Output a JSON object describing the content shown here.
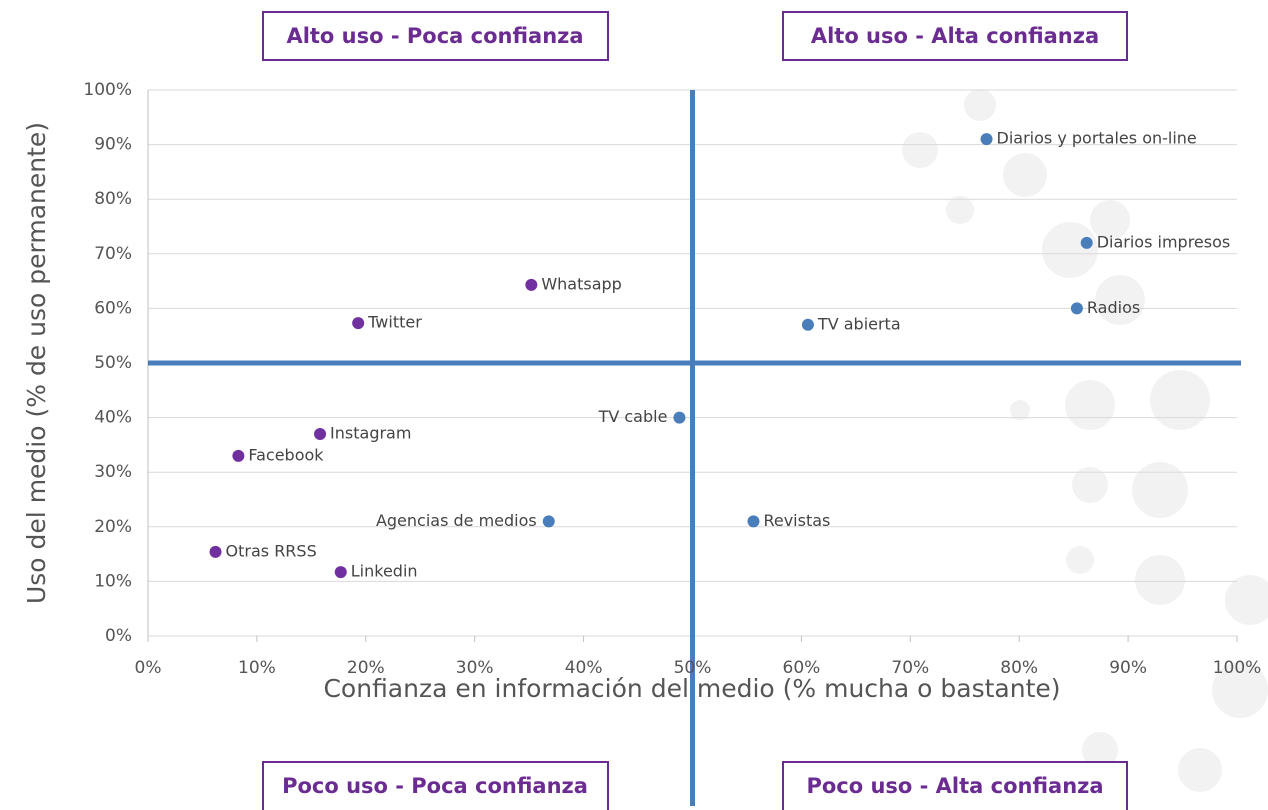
{
  "chart_data": {
    "type": "scatter",
    "quadrants": {
      "top_left": "Alto uso - Poca confianza",
      "top_right": "Alto uso - Alta confianza",
      "bottom_left": "Poco uso - Poca confianza",
      "bottom_right": "Poco uso - Alta confianza"
    },
    "xlabel": "Confianza en información del medio (% mucha o bastante)",
    "ylabel": "Uso del medio (% de uso permanente)",
    "xlim": [
      0,
      100
    ],
    "ylim": [
      0,
      100
    ],
    "xticks": [
      {
        "value": 0,
        "label": "0%"
      },
      {
        "value": 10,
        "label": "10%"
      },
      {
        "value": 20,
        "label": "20%"
      },
      {
        "value": 30,
        "label": "30%"
      },
      {
        "value": 40,
        "label": "40%"
      },
      {
        "value": 50,
        "label": "50%"
      },
      {
        "value": 60,
        "label": "60%"
      },
      {
        "value": 70,
        "label": "70%"
      },
      {
        "value": 80,
        "label": "80%"
      },
      {
        "value": 90,
        "label": "90%"
      },
      {
        "value": 100,
        "label": "100%"
      }
    ],
    "yticks": [
      {
        "value": 0,
        "label": "0%"
      },
      {
        "value": 10,
        "label": "10%"
      },
      {
        "value": 20,
        "label": "20%"
      },
      {
        "value": 30,
        "label": "30%"
      },
      {
        "value": 40,
        "label": "40%"
      },
      {
        "value": 50,
        "label": "50%"
      },
      {
        "value": 60,
        "label": "60%"
      },
      {
        "value": 70,
        "label": "70%"
      },
      {
        "value": 80,
        "label": "80%"
      },
      {
        "value": 90,
        "label": "90%"
      },
      {
        "value": 100,
        "label": "100%"
      }
    ],
    "grid": true,
    "divider": {
      "x": 50,
      "y": 50,
      "color": "#4a7ebb"
    },
    "series": [
      {
        "color": "#4a7ebb",
        "labels": [
          "Diarios y portales on-line",
          "Diarios impresos",
          "Radios",
          "TV abierta",
          "TV cable",
          "Agencias de medios",
          "Revistas"
        ],
        "x": [
          77,
          86.2,
          85.3,
          60.6,
          48.8,
          36.8,
          55.6
        ],
        "values": [
          91,
          72,
          60,
          57,
          40,
          21,
          21
        ]
      },
      {
        "color": "#7030a0",
        "labels": [
          "Whatsapp",
          "Twitter",
          "Instagram",
          "Facebook",
          "Otras RRSS",
          "Linkedin"
        ],
        "x": [
          35.2,
          19.3,
          15.8,
          8.3,
          6.2,
          17.7
        ],
        "values": [
          64.3,
          57.3,
          37,
          33,
          15.4,
          11.7
        ]
      }
    ]
  }
}
